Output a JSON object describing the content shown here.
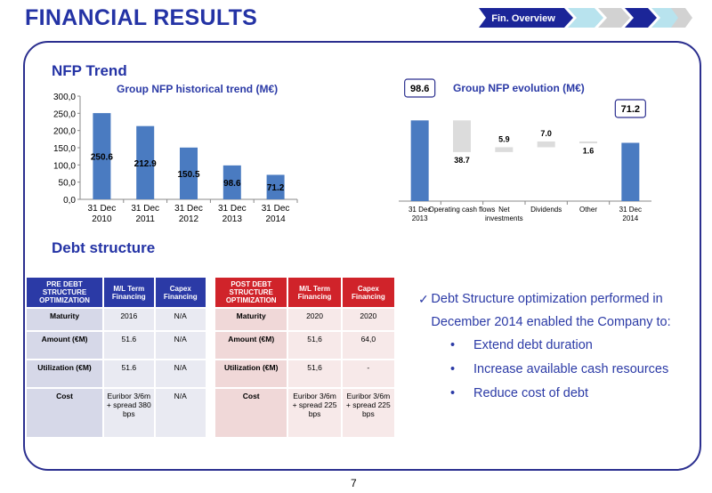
{
  "header": {
    "title": "FINANCIAL RESULTS",
    "nav_label": "Fin. Overview"
  },
  "nfp_section": {
    "title": "NFP Trend"
  },
  "debt_section": {
    "title": "Debt structure"
  },
  "chart_data": [
    {
      "type": "bar",
      "title": "Group NFP historical trend (M€)",
      "categories": [
        "31 Dec 2010",
        "31 Dec 2011",
        "31 Dec 2012",
        "31 Dec 2013",
        "31 Dec 2014"
      ],
      "values": [
        250.6,
        212.9,
        150.5,
        98.6,
        71.2
      ],
      "data_labels": [
        "250.6",
        "212.9",
        "150.5",
        "98.6",
        "71.2"
      ],
      "ylim": [
        0,
        300
      ],
      "yticks": [
        "300,0",
        "250,0",
        "200,0",
        "150,0",
        "100,0",
        "50,0",
        "0,0"
      ],
      "color": "#4a7bc1"
    },
    {
      "type": "waterfall",
      "title": "Group NFP evolution (M€)",
      "categories": [
        "31 Dec 2013",
        "Operating cash flows",
        "Net investments",
        "Dividends",
        "Other",
        "31 Dec 2014"
      ],
      "values": [
        98.6,
        -38.7,
        5.9,
        7.0,
        -1.6,
        71.2
      ],
      "data_labels": [
        "98.6",
        "38.7",
        "5.9",
        "7.0",
        "1.6",
        "71.2"
      ],
      "total_color": "#4a7bc1",
      "step_color": "#dcdcdc"
    }
  ],
  "pre_table": {
    "headers": [
      "PRE DEBT STRUCTURE OPTIMIZATION",
      "M/L Term Financing",
      "Capex Financing"
    ],
    "rows": [
      [
        "Maturity",
        "2016",
        "N/A"
      ],
      [
        "Amount (€M)",
        "51.6",
        "N/A"
      ],
      [
        "Utilization (€M)",
        "51.6",
        "N/A"
      ],
      [
        "Cost",
        "Euribor 3/6m + spread 380 bps",
        "N/A"
      ]
    ]
  },
  "post_table": {
    "headers": [
      "POST DEBT STRUCTURE OPTIMIZATION",
      "M/L Term Financing",
      "Capex Financing"
    ],
    "rows": [
      [
        "Maturity",
        "2020",
        "2020"
      ],
      [
        "Amount (€M)",
        "51,6",
        "64,0"
      ],
      [
        "Utilization (€M)",
        "51,6",
        "-"
      ],
      [
        "Cost",
        "Euribor 3/6m + spread 225 bps",
        "Euribor 3/6m + spread 225 bps"
      ]
    ]
  },
  "bullets": {
    "main": "Debt Structure optimization performed in December 2014 enabled the Company to:",
    "items": [
      "Extend debt duration",
      "Increase available cash resources",
      "Reduce cost of debt"
    ]
  },
  "page_number": "7"
}
